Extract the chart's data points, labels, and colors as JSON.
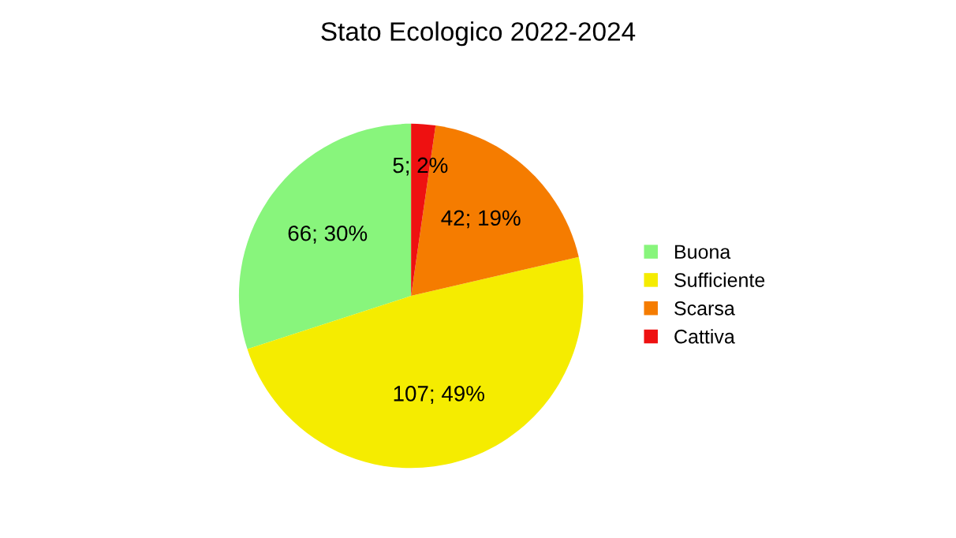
{
  "chart_data": {
    "type": "pie",
    "title": "Stato Ecologico 2022-2024",
    "categories": [
      "Buona",
      "Sufficiente",
      "Scarsa",
      "Cattiva"
    ],
    "values": [
      66,
      107,
      42,
      5
    ],
    "colors": [
      "#88f57c",
      "#f5ec00",
      "#f57c00",
      "#ee1111"
    ],
    "value_labels": [
      "66; 30%",
      "107; 49%",
      "42; 19%",
      "5; 2%"
    ],
    "legend": "right"
  }
}
